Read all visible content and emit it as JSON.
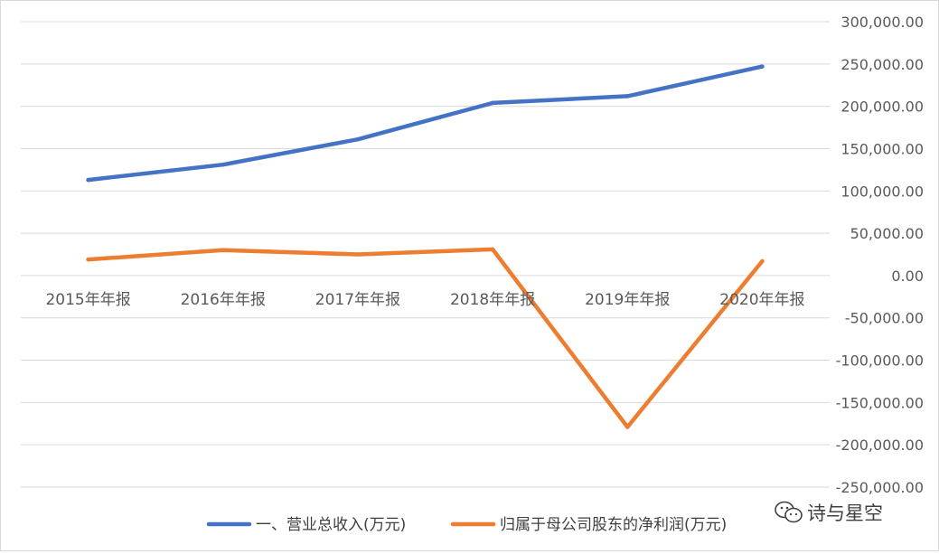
{
  "chart_data": {
    "type": "line",
    "categories": [
      "2015年年报",
      "2016年年报",
      "2017年年报",
      "2018年年报",
      "2019年年报",
      "2020年年报"
    ],
    "series": [
      {
        "name": "一、营业总收入(万元)",
        "color": "#4472c4",
        "values": [
          113000,
          131000,
          161000,
          204000,
          212000,
          247000
        ]
      },
      {
        "name": "归属于母公司股东的净利润(万元)",
        "color": "#ed7d31",
        "values": [
          19000,
          30000,
          25000,
          31000,
          -179000,
          17000
        ]
      }
    ],
    "ylim": [
      -250000,
      300000
    ],
    "y_ticks": [
      {
        "value": 300000,
        "label": "300,000.00"
      },
      {
        "value": 250000,
        "label": "250,000.00"
      },
      {
        "value": 200000,
        "label": "200,000.00"
      },
      {
        "value": 150000,
        "label": "150,000.00"
      },
      {
        "value": 100000,
        "label": "100,000.00"
      },
      {
        "value": 50000,
        "label": "50,000.00"
      },
      {
        "value": 0,
        "label": "0.00"
      },
      {
        "value": -50000,
        "label": "-50,000.00"
      },
      {
        "value": -100000,
        "label": "-100,000.00"
      },
      {
        "value": -150000,
        "label": "-150,000.00"
      },
      {
        "value": -200000,
        "label": "-200,000.00"
      },
      {
        "value": -250000,
        "label": "-250,000.00"
      }
    ],
    "y_axis_position": "right",
    "grid": true,
    "legend_position": "bottom"
  },
  "watermark": {
    "text": "诗与星空",
    "icon": "wechat-icon"
  },
  "colors": {
    "grid": "#d9d9d9",
    "text": "#595959",
    "border": "#d9d9d9"
  }
}
